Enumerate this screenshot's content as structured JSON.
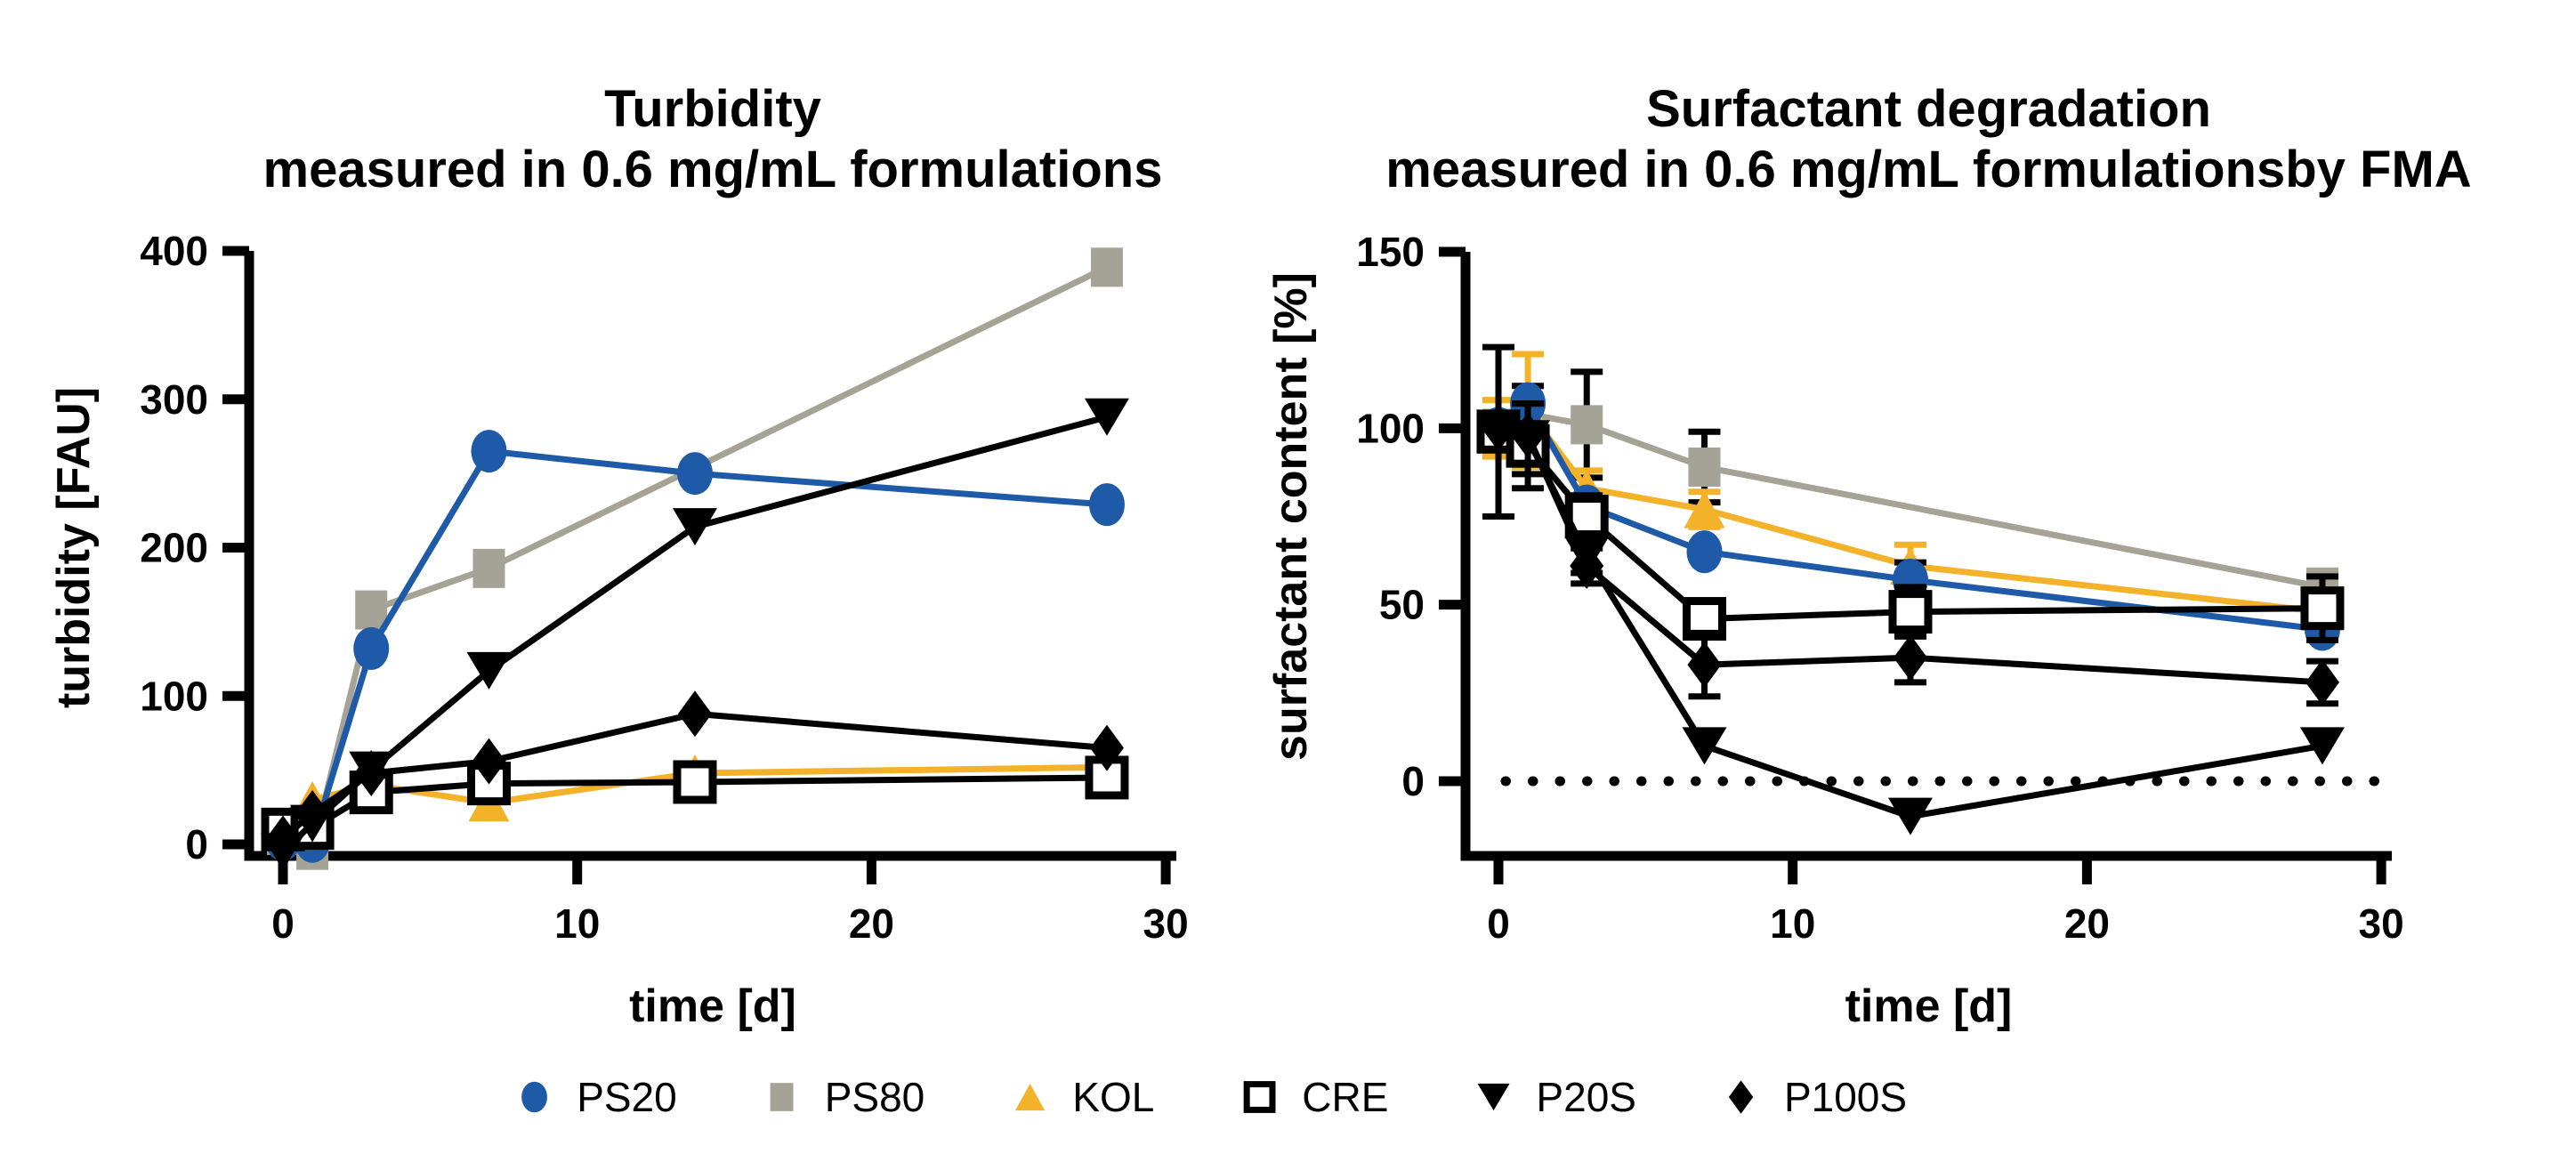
{
  "figure": {
    "background": "#ffffff"
  },
  "colors": {
    "blue": "#1e5aa8",
    "gray": "#a5a396",
    "yellow": "#f3b229",
    "black": "#000000",
    "white": "#ffffff"
  },
  "legend": [
    {
      "label": "PS20",
      "marker": "circle",
      "color": "blue"
    },
    {
      "label": "PS80",
      "marker": "square",
      "color": "gray"
    },
    {
      "label": "KOL",
      "marker": "triangle-up",
      "color": "yellow"
    },
    {
      "label": "CRE",
      "marker": "open-square",
      "color": "black"
    },
    {
      "label": "P20S",
      "marker": "triangle-down",
      "color": "black"
    },
    {
      "label": "P100S",
      "marker": "diamond",
      "color": "black"
    }
  ],
  "chart_data": [
    {
      "type": "line",
      "title": "Turbidity",
      "subtitle": "measured in 0.6 mg/mL formulations",
      "xlabel": "time [d]",
      "ylabel": "turbidity [FAU]",
      "x_ticks": [
        0,
        10,
        20,
        30
      ],
      "y_ticks": [
        0,
        100,
        200,
        300,
        400
      ],
      "xlim": [
        0,
        30
      ],
      "ylim": [
        0,
        400
      ],
      "grid": false,
      "zero_dotted_line": false,
      "legend_position": "bottom-shared",
      "series": [
        {
          "name": "PS20",
          "marker": "circle",
          "color": "blue",
          "x": [
            0,
            1,
            3,
            7,
            14,
            28
          ],
          "y": [
            3,
            2,
            132,
            265,
            250,
            229
          ]
        },
        {
          "name": "PS80",
          "marker": "square",
          "color": "gray",
          "x": [
            0,
            1,
            3,
            7,
            28
          ],
          "y": [
            6,
            -4,
            158,
            186,
            389
          ]
        },
        {
          "name": "KOL",
          "marker": "triangle-up",
          "color": "yellow",
          "x": [
            0,
            1,
            3,
            7,
            14,
            28
          ],
          "y": [
            8,
            30,
            40,
            28,
            48,
            52
          ]
        },
        {
          "name": "CRE",
          "marker": "open-square",
          "color": "black",
          "x": [
            0,
            1,
            3,
            7,
            14,
            28
          ],
          "y": [
            10,
            11,
            35,
            41,
            42,
            45
          ]
        },
        {
          "name": "P20S",
          "marker": "triangle-down",
          "color": "black",
          "x": [
            0,
            1,
            3,
            7,
            14,
            28
          ],
          "y": [
            -5,
            14,
            50,
            117,
            214,
            288
          ]
        },
        {
          "name": "P100S",
          "marker": "diamond",
          "color": "black",
          "x": [
            0,
            1,
            3,
            7,
            14,
            28
          ],
          "y": [
            4,
            21,
            48,
            56,
            88,
            65
          ]
        }
      ]
    },
    {
      "type": "line",
      "title": "Surfactant degradation",
      "subtitle": "measured in 0.6 mg/mL formulationsby FMA",
      "xlabel": "time [d]",
      "ylabel": "surfactant content [%]",
      "x_ticks": [
        0,
        10,
        20,
        30
      ],
      "y_ticks": [
        0,
        50,
        100,
        150
      ],
      "xlim": [
        0,
        30
      ],
      "ylim": [
        -20,
        150
      ],
      "grid": false,
      "zero_dotted_line": true,
      "legend_position": "bottom-shared",
      "series": [
        {
          "name": "PS20",
          "marker": "circle",
          "color": "blue",
          "x": [
            0,
            1,
            3,
            7,
            14,
            28
          ],
          "y": [
            100,
            107,
            78,
            65,
            57,
            43
          ],
          "err": [
            0,
            0,
            0,
            0,
            5,
            0
          ]
        },
        {
          "name": "PS80",
          "marker": "square",
          "color": "gray",
          "x": [
            0,
            1,
            3,
            7,
            28
          ],
          "y": [
            100,
            104,
            101,
            89,
            55
          ],
          "err": [
            0,
            8,
            15,
            10,
            4
          ]
        },
        {
          "name": "KOL",
          "marker": "triangle-up",
          "color": "yellow",
          "x": [
            0,
            1,
            3,
            7,
            14,
            28
          ],
          "y": [
            100,
            105,
            83,
            77,
            61,
            48
          ],
          "err": [
            8,
            16,
            5,
            5,
            6,
            3
          ]
        },
        {
          "name": "CRE",
          "marker": "open-square",
          "color": "black",
          "x": [
            0,
            1,
            3,
            7,
            14,
            28
          ],
          "y": [
            99,
            95,
            75,
            46,
            48,
            49
          ],
          "err": [
            24,
            12,
            6,
            4,
            7,
            9
          ]
        },
        {
          "name": "P20S",
          "marker": "triangle-down",
          "color": "black",
          "x": [
            0,
            1,
            3,
            7,
            14,
            28
          ],
          "y": [
            100,
            97,
            64,
            10,
            -10,
            10
          ],
          "err": [
            0,
            10,
            5,
            0,
            0,
            0
          ]
        },
        {
          "name": "P100S",
          "marker": "diamond",
          "color": "black",
          "x": [
            0,
            1,
            3,
            7,
            14,
            28
          ],
          "y": [
            100,
            98,
            61,
            33,
            35,
            28
          ],
          "err": [
            0,
            0,
            5,
            9,
            7,
            6
          ]
        }
      ]
    }
  ]
}
